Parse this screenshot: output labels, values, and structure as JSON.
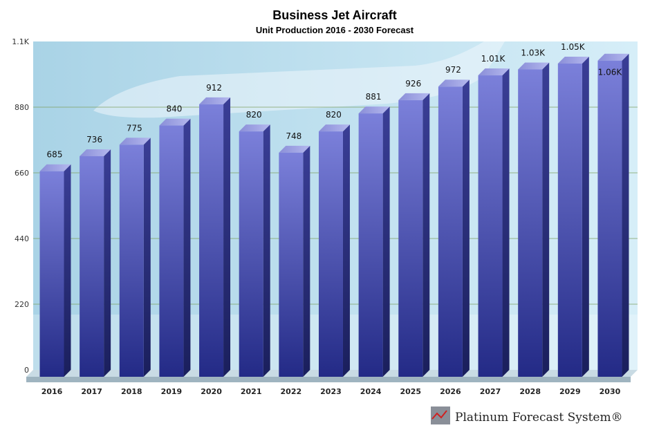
{
  "chart_data": {
    "type": "bar",
    "title": "Business Jet Aircraft",
    "subtitle": "Unit Production 2016 - 2030 Forecast",
    "categories": [
      "2016",
      "2017",
      "2018",
      "2019",
      "2020",
      "2021",
      "2022",
      "2023",
      "2024",
      "2025",
      "2026",
      "2027",
      "2028",
      "2029",
      "2030"
    ],
    "values": [
      685,
      736,
      775,
      840,
      912,
      820,
      748,
      820,
      881,
      926,
      972,
      1010,
      1030,
      1050,
      1060
    ],
    "data_labels": [
      "685",
      "736",
      "775",
      "840",
      "912",
      "820",
      "748",
      "820",
      "881",
      "926",
      "972",
      "1.01K",
      "1.03K",
      "1.05K",
      "1.06K"
    ],
    "y_ticks": [
      "0",
      "220",
      "440",
      "660",
      "880",
      "1.1K"
    ],
    "ylim": [
      0,
      1100
    ],
    "grid": true,
    "bar_color": "#5a5fc0",
    "style": "3d"
  },
  "branding": {
    "logo_text": "Platinum Forecast System®"
  }
}
